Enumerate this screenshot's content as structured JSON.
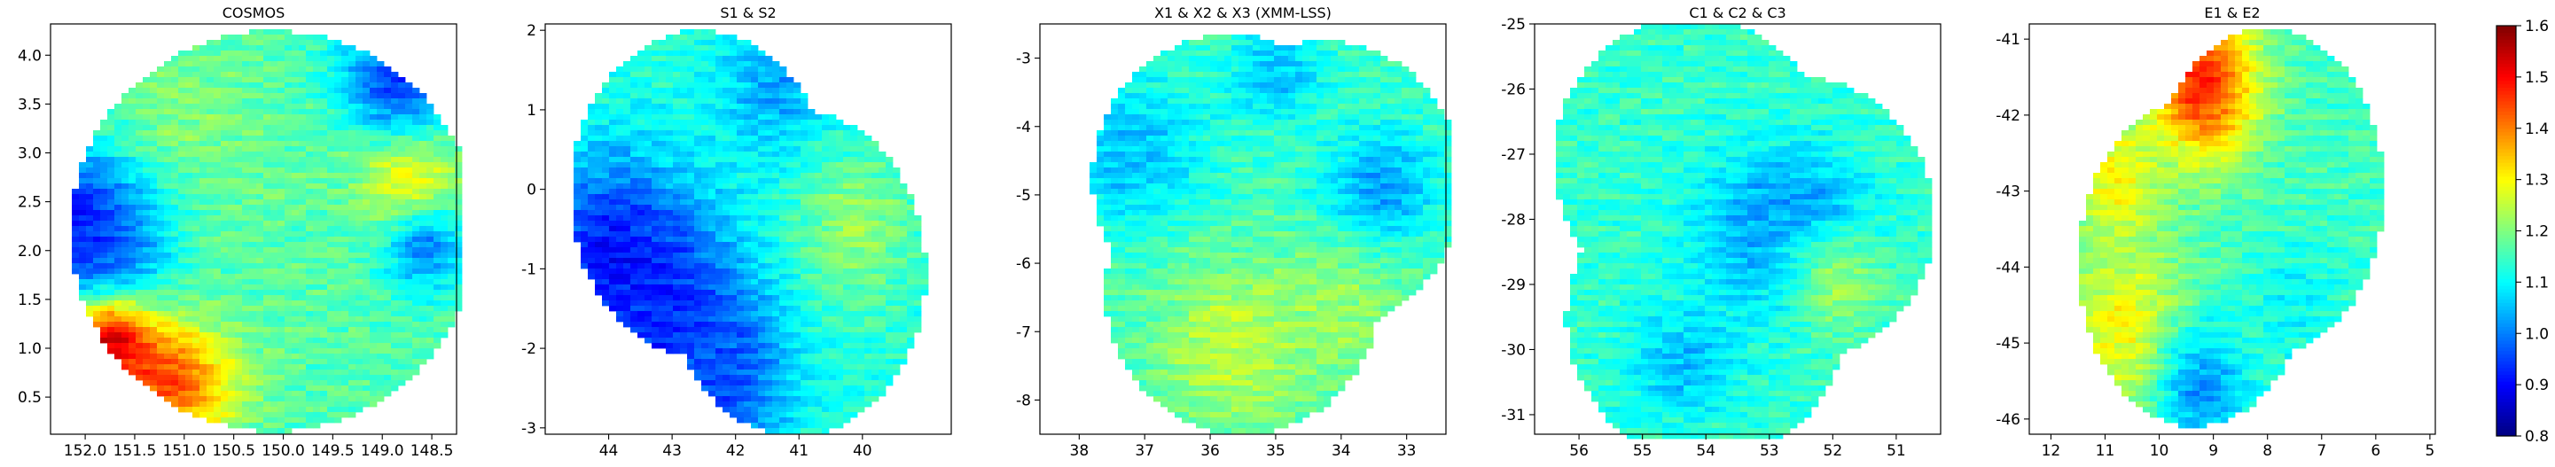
{
  "chart_data": {
    "type": "heatmap",
    "colorbar": {
      "colormap": "jet",
      "range": [
        0.8,
        1.6
      ],
      "ticks": [
        "0.8",
        "0.9",
        "1.0",
        "1.1",
        "1.2",
        "1.3",
        "1.4",
        "1.5",
        "1.6"
      ]
    },
    "panels": [
      {
        "title": "COSMOS",
        "xlim": [
          152.35,
          148.25
        ],
        "ylim": [
          0.12,
          4.32
        ],
        "xticks": [
          "152.0",
          "151.5",
          "151.0",
          "150.5",
          "150.0",
          "149.5",
          "149.0",
          "148.5"
        ],
        "yticks": [
          "0.5",
          "1.0",
          "1.5",
          "2.0",
          "2.5",
          "3.0",
          "3.5",
          "4.0"
        ],
        "base_value": 1.16,
        "footprint": [
          {
            "x": 150.1,
            "y": 2.2,
            "r": 2.05
          }
        ],
        "features": [
          {
            "x": 151.95,
            "y": 2.3,
            "r": 0.45,
            "value": 0.85
          },
          {
            "x": 151.6,
            "y": 2.1,
            "r": 0.5,
            "value": 0.87
          },
          {
            "x": 151.1,
            "y": 0.75,
            "r": 0.45,
            "value": 1.52
          },
          {
            "x": 151.7,
            "y": 1.05,
            "r": 0.3,
            "value": 1.6
          },
          {
            "x": 148.8,
            "y": 2.7,
            "r": 0.35,
            "value": 1.38
          },
          {
            "x": 148.9,
            "y": 3.7,
            "r": 0.4,
            "value": 0.92
          },
          {
            "x": 148.6,
            "y": 2.0,
            "r": 0.3,
            "value": 0.95
          },
          {
            "x": 150.2,
            "y": 2.2,
            "r": 1.0,
            "value": 1.17
          },
          {
            "x": 150.9,
            "y": 3.4,
            "r": 0.5,
            "value": 1.2
          }
        ]
      },
      {
        "title": "S1 & S2",
        "xlim": [
          45.0,
          38.6
        ],
        "ylim": [
          -3.08,
          2.08
        ],
        "xticks": [
          "44",
          "43",
          "42",
          "41",
          "40"
        ],
        "yticks": [
          "-3",
          "-2",
          "-1",
          "0",
          "1",
          "2"
        ],
        "base_value": 1.13,
        "footprint": [
          {
            "x": 42.55,
            "y": -0.05,
            "r": 2.05
          },
          {
            "x": 41.05,
            "y": -1.05,
            "r": 2.05
          }
        ],
        "features": [
          {
            "x": 43.9,
            "y": -0.9,
            "r": 0.9,
            "value": 0.9
          },
          {
            "x": 43.0,
            "y": -1.7,
            "r": 0.9,
            "value": 0.92
          },
          {
            "x": 42.2,
            "y": -2.4,
            "r": 0.7,
            "value": 0.96
          },
          {
            "x": 41.4,
            "y": 1.3,
            "r": 0.6,
            "value": 1.03
          },
          {
            "x": 40.1,
            "y": -0.5,
            "r": 0.6,
            "value": 1.22
          }
        ]
      },
      {
        "title": "X1 & X2 & X3 (XMM-LSS)",
        "xlim": [
          38.6,
          32.4
        ],
        "ylim": [
          -8.5,
          -2.5
        ],
        "xticks": [
          "38",
          "37",
          "36",
          "35",
          "34",
          "33"
        ],
        "yticks": [
          "-8",
          "-7",
          "-6",
          "-5",
          "-4",
          "-3"
        ],
        "base_value": 1.15,
        "footprint": [
          {
            "x": 35.7,
            "y": -4.75,
            "r": 2.1
          },
          {
            "x": 34.25,
            "y": -4.85,
            "r": 2.1
          },
          {
            "x": 35.5,
            "y": -6.4,
            "r": 2.1
          }
        ],
        "features": [
          {
            "x": 37.2,
            "y": -4.4,
            "r": 0.8,
            "value": 1.05
          },
          {
            "x": 33.4,
            "y": -4.9,
            "r": 0.6,
            "value": 1.02
          },
          {
            "x": 35.0,
            "y": -3.2,
            "r": 0.5,
            "value": 1.05
          },
          {
            "x": 35.6,
            "y": -7.2,
            "r": 0.9,
            "value": 1.25
          },
          {
            "x": 34.0,
            "y": -6.7,
            "r": 0.7,
            "value": 1.22
          }
        ]
      },
      {
        "title": "C1 & C2 & C3",
        "xlim": [
          56.7,
          50.3
        ],
        "ylim": [
          -31.3,
          -25.0
        ],
        "xticks": [
          "56",
          "55",
          "54",
          "53",
          "52",
          "51"
        ],
        "yticks": [
          "-31",
          "-30",
          "-29",
          "-28",
          "-27",
          "-26",
          "-25"
        ],
        "base_value": 1.14,
        "footprint": [
          {
            "x": 54.2,
            "y": -27.1,
            "r": 2.2
          },
          {
            "x": 52.6,
            "y": -28.0,
            "r": 2.2
          },
          {
            "x": 54.0,
            "y": -29.5,
            "r": 2.2
          }
        ],
        "features": [
          {
            "x": 52.6,
            "y": -28.1,
            "r": 0.6,
            "value": 0.94
          },
          {
            "x": 52.9,
            "y": -28.3,
            "r": 0.9,
            "value": 1.03
          },
          {
            "x": 51.9,
            "y": -29.0,
            "r": 0.6,
            "value": 1.22
          },
          {
            "x": 54.4,
            "y": -30.2,
            "r": 0.6,
            "value": 1.05
          }
        ]
      },
      {
        "title": "E1 & E2",
        "xlim": [
          12.4,
          4.9
        ],
        "ylim": [
          -46.2,
          -40.8
        ],
        "xticks": [
          "12",
          "11",
          "10",
          "9",
          "8",
          "7",
          "6",
          "5"
        ],
        "yticks": [
          "-46",
          "-45",
          "-44",
          "-43",
          "-42",
          "-41"
        ],
        "base_value": 1.15,
        "footprint": [
          {
            "x": 8.0,
            "y": -43.0,
            "r": 2.15
          },
          {
            "x": 9.35,
            "y": -43.95,
            "r": 2.15
          }
        ],
        "features": [
          {
            "x": 9.2,
            "y": -41.6,
            "r": 0.7,
            "value": 1.48
          },
          {
            "x": 10.8,
            "y": -42.8,
            "r": 0.6,
            "value": 1.3
          },
          {
            "x": 10.6,
            "y": -44.8,
            "r": 0.8,
            "value": 1.3
          },
          {
            "x": 9.2,
            "y": -45.6,
            "r": 0.6,
            "value": 1.02
          },
          {
            "x": 7.4,
            "y": -44.5,
            "r": 0.6,
            "value": 1.1
          }
        ]
      }
    ]
  }
}
